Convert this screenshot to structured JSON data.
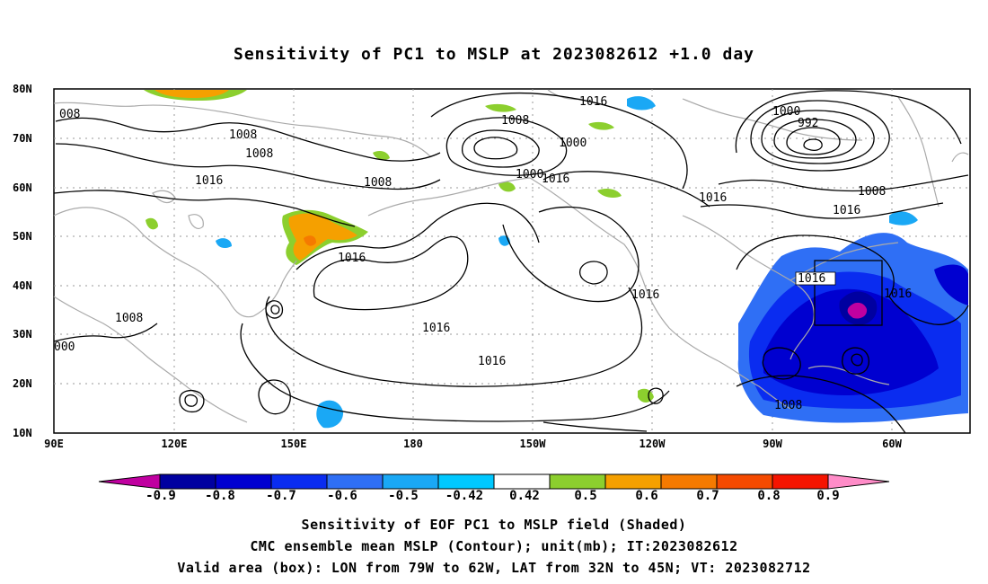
{
  "title": "Sensitivity of PC1 to MSLP at 2023082612 +1.0 day",
  "axes": {
    "y_ticks": [
      "80N",
      "70N",
      "60N",
      "50N",
      "40N",
      "30N",
      "20N",
      "10N"
    ],
    "x_ticks": [
      "90E",
      "120E",
      "150E",
      "180",
      "150W",
      "120W",
      "90W",
      "60W"
    ]
  },
  "colorbar": {
    "labels": [
      "-0.9",
      "-0.8",
      "-0.7",
      "-0.6",
      "-0.5",
      "-0.42",
      "0.42",
      "0.5",
      "0.6",
      "0.7",
      "0.8",
      "0.9"
    ],
    "colors": [
      "#c000a0",
      "#0000a0",
      "#0000d0",
      "#0a2cf0",
      "#2f6ff5",
      "#1aa8f5",
      "#00c8ff",
      "#ffffff",
      "#8ccf2e",
      "#f5a000",
      "#f57a00",
      "#f54a00",
      "#f51400",
      "#ff8cc8"
    ]
  },
  "contour_labels": [
    "1016",
    "1008",
    "1000",
    "992",
    "1008",
    "1016",
    "1016",
    "1016",
    "1016",
    "1016",
    "1008",
    "1008",
    "1016",
    "1016",
    "1008",
    "1008",
    "1000",
    "1000",
    "1016",
    "1016",
    "1008",
    "000",
    "008"
  ],
  "captions": [
    "Sensitivity of EOF PC1 to MSLP field (Shaded)",
    "CMC ensemble mean MSLP (Contour); unit(mb); IT:2023082612",
    "Valid area (box): LON from 79W to 62W, LAT from 32N to 45N; VT: 2023082712"
  ]
}
